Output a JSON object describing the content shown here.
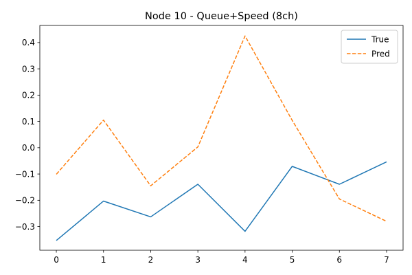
{
  "chart_data": {
    "type": "line",
    "title": "Node 10 - Queue+Speed (8ch)",
    "xlabel": "",
    "ylabel": "",
    "x": [
      0,
      1,
      2,
      3,
      4,
      5,
      6,
      7
    ],
    "xlim": [
      -0.35,
      7.35
    ],
    "ylim": [
      -0.39,
      0.465
    ],
    "x_ticks": [
      0,
      1,
      2,
      3,
      4,
      5,
      6,
      7
    ],
    "x_tick_labels": [
      "0",
      "1",
      "2",
      "3",
      "4",
      "5",
      "6",
      "7"
    ],
    "y_ticks": [
      -0.3,
      -0.2,
      -0.1,
      0.0,
      0.1,
      0.2,
      0.3,
      0.4
    ],
    "y_tick_labels": [
      "−0.3",
      "−0.2",
      "−0.1",
      "0.0",
      "0.1",
      "0.2",
      "0.3",
      "0.4"
    ],
    "grid": false,
    "legend_position": "top-right",
    "series": [
      {
        "name": "True",
        "color": "#1f77b4",
        "line_style": "solid",
        "values": [
          -0.353,
          -0.203,
          -0.263,
          -0.139,
          -0.318,
          -0.071,
          -0.139,
          -0.054
        ]
      },
      {
        "name": "Pred",
        "color": "#ff7f0e",
        "line_style": "dashed",
        "values": [
          -0.101,
          0.105,
          -0.145,
          0.003,
          0.425,
          0.104,
          -0.195,
          -0.28
        ]
      }
    ]
  }
}
